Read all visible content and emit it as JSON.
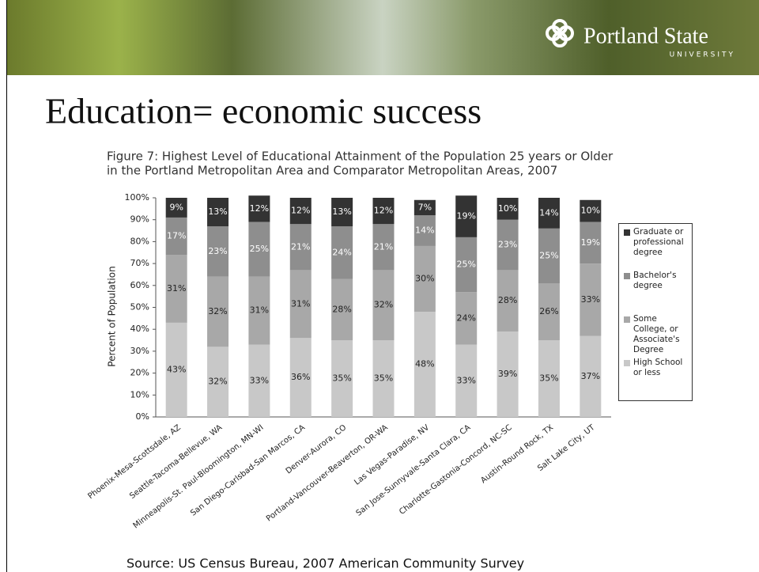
{
  "slide": {
    "logo": "Portland State",
    "logo_sub": "UNIVERSITY",
    "heading": "Education= economic success",
    "source": "Source: US Census Bureau, 2007 American Community  Survey"
  },
  "chart_data": {
    "type": "stacked-bar",
    "title": [
      "Figure 7: Highest Level of Educational Attainment of the Population 25 years or Older",
      "in the Portland Metropolitan Area and Comparator Metropolitan Areas, 2007"
    ],
    "y_label": "Percent of Population",
    "categories": [
      "Phoenix-Mesa-Scottsdale, AZ",
      "Seattle-Tacoma-Bellevue, WA",
      "Minneapolis-St. Paul-Bloomington, MN-WI",
      "San Diego-Carlsbad-San Marcos, CA",
      "Denver-Aurora, CO",
      "Portland-Vancouver-Beaverton, OR-WA",
      "Las Vegas-Paradise, NV",
      "San Jose-Sunnyvale-Santa Clara, CA",
      "Charlotte-Gastonia-Concord, NC-SC",
      "Austin-Round Rock, TX",
      "Salt Lake City, UT"
    ],
    "series": [
      {
        "name": "High School or less",
        "color": "#c8c8c8",
        "values": [
          43,
          32,
          33,
          36,
          35,
          35,
          48,
          33,
          39,
          35,
          37
        ],
        "value_labels": [
          "43%",
          "32%",
          "33%",
          "36%",
          "35%",
          "35%",
          "48%",
          "33%",
          "39%",
          "35%",
          "37%"
        ]
      },
      {
        "name": "Some College, or Associate's Degree",
        "color": "#a8a8a8",
        "values": [
          31,
          32,
          31,
          31,
          28,
          32,
          30,
          24,
          28,
          26,
          33
        ],
        "value_labels": [
          "31%",
          "32%",
          "31%",
          "31%",
          "28%",
          "32%",
          "30%",
          "24%",
          "28%",
          "26%",
          "33%"
        ]
      },
      {
        "name": "Bachelor's degree",
        "color": "#8e8e8e",
        "values": [
          17,
          23,
          25,
          21,
          24,
          21,
          14,
          25,
          23,
          25,
          19
        ],
        "value_labels": [
          "17%",
          "23%",
          "25%",
          "21%",
          "24%",
          "21%",
          "14%",
          "25%",
          "23%",
          "25%",
          "19%"
        ]
      },
      {
        "name": "Graduate or professional degree",
        "color": "#333333",
        "values": [
          9,
          13,
          12,
          12,
          13,
          12,
          7,
          19,
          10,
          14,
          10
        ],
        "value_labels": [
          "9%",
          "13%",
          "12%",
          "12%",
          "13%",
          "12%",
          "7%",
          "19%",
          "10%",
          "14%",
          "10%"
        ]
      }
    ],
    "ylim": [
      0,
      100
    ],
    "yticks": [
      {
        "value": 0,
        "label": "0%"
      },
      {
        "value": 10,
        "label": "10%"
      },
      {
        "value": 20,
        "label": "20%"
      },
      {
        "value": 30,
        "label": "30%"
      },
      {
        "value": 40,
        "label": "40%"
      },
      {
        "value": 50,
        "label": "50%"
      },
      {
        "value": 60,
        "label": "60%"
      },
      {
        "value": 70,
        "label": "70%"
      },
      {
        "value": 80,
        "label": "80%"
      },
      {
        "value": 90,
        "label": "90%"
      },
      {
        "value": 100,
        "label": "100%"
      }
    ],
    "legend": "right"
  }
}
